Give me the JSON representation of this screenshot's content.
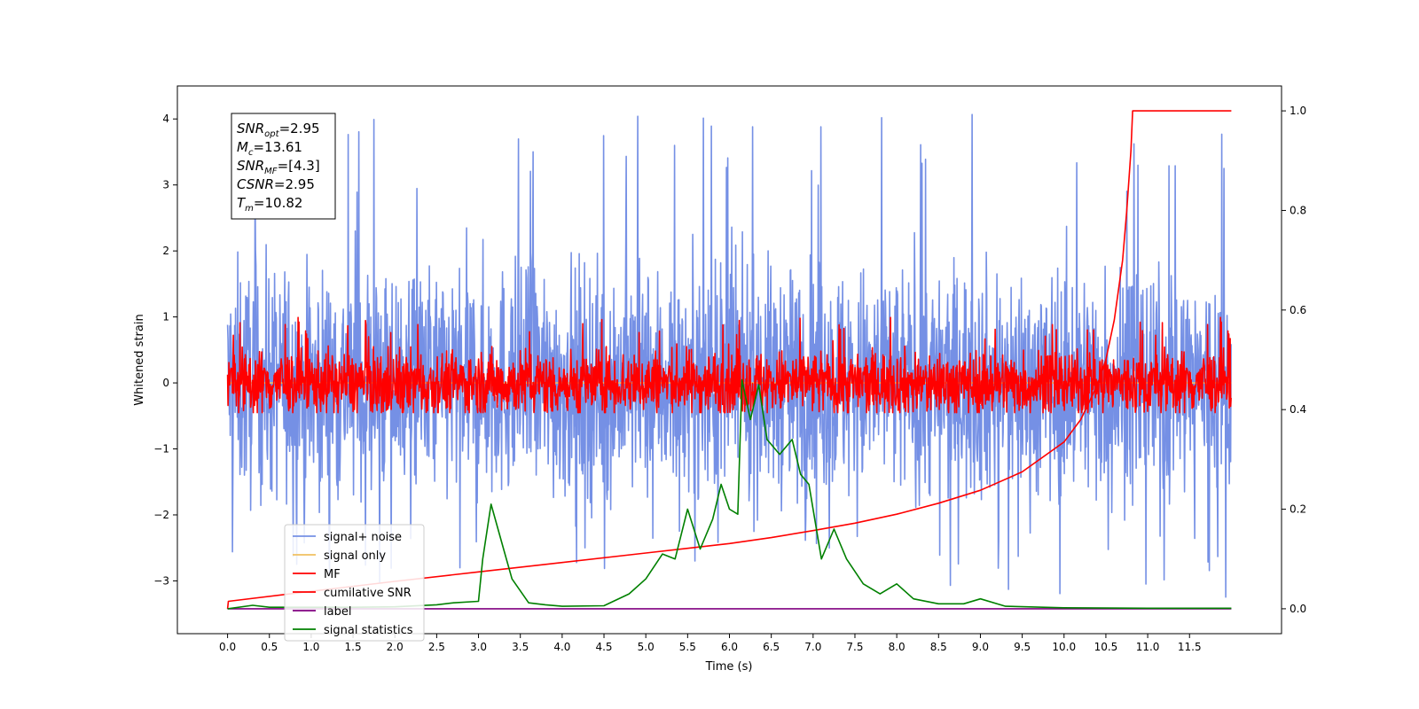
{
  "chart_data": {
    "type": "line",
    "xlabel": "Time (s)",
    "ylabel": "Whitened strain",
    "xlim": [
      -0.6,
      12.6
    ],
    "ylim": [
      -3.8,
      4.5
    ],
    "ylim_right": [
      -0.05,
      1.05
    ],
    "xticks": [
      "0.0",
      "0.5",
      "1.0",
      "1.5",
      "2.0",
      "2.5",
      "3.0",
      "3.5",
      "4.0",
      "4.5",
      "5.0",
      "5.5",
      "6.0",
      "6.5",
      "7.0",
      "7.5",
      "8.0",
      "8.5",
      "9.0",
      "9.5",
      "10.0",
      "10.5",
      "11.0",
      "11.5"
    ],
    "yticks_left": [
      -3,
      -2,
      -1,
      0,
      1,
      2,
      3,
      4
    ],
    "yticks_right": [
      0.0,
      0.2,
      0.4,
      0.6,
      0.8,
      1.0
    ],
    "legend_position": "lower-left",
    "annotation": [
      {
        "base": "SNR",
        "sub": "opt",
        "value": "=2.95"
      },
      {
        "base": "M",
        "sub": "c",
        "value": "=13.61"
      },
      {
        "base": "SNR",
        "sub": "MF",
        "value": "=[4.3]"
      },
      {
        "base": "CSNR",
        "sub": "",
        "value": "=2.95"
      },
      {
        "base": "T",
        "sub": "m",
        "value": "=10.82"
      }
    ],
    "series": [
      {
        "name": "signal+ noise",
        "color": "#7590e5",
        "axis": "left",
        "kind": "noise",
        "x_range": [
          0,
          12
        ],
        "center": 0,
        "band": [
          -1.6,
          1.6
        ],
        "extremes": [
          -3.3,
          4.1
        ]
      },
      {
        "name": "signal only",
        "color": "#f0c060",
        "axis": "left",
        "kind": "flat",
        "x_range": [
          0,
          12
        ],
        "y": 0
      },
      {
        "name": "MF",
        "color": "#ff0000",
        "axis": "left",
        "kind": "noise",
        "x_range": [
          0,
          12
        ],
        "center": 0,
        "band": [
          -0.4,
          0.5
        ],
        "extremes": [
          -0.45,
          1.0
        ]
      },
      {
        "name": "cumilative SNR",
        "color": "#ff0000",
        "axis": "right",
        "x": [
          0,
          0.01,
          1,
          2,
          3,
          4,
          5,
          6,
          6.5,
          7,
          7.5,
          8,
          8.5,
          9,
          9.5,
          10,
          10.2,
          10.4,
          10.5,
          10.6,
          10.7,
          10.75,
          10.8,
          10.82,
          12
        ],
        "y": [
          0,
          0.015,
          0.035,
          0.055,
          0.074,
          0.093,
          0.112,
          0.131,
          0.143,
          0.157,
          0.172,
          0.19,
          0.212,
          0.238,
          0.275,
          0.335,
          0.38,
          0.45,
          0.5,
          0.58,
          0.7,
          0.8,
          0.92,
          1.0,
          1.0
        ]
      },
      {
        "name": "label",
        "color": "#800080",
        "axis": "right",
        "kind": "flat",
        "x_range": [
          0,
          12
        ],
        "y": 0
      },
      {
        "name": "signal statistics",
        "color": "#008000",
        "axis": "right",
        "x": [
          0,
          0.3,
          0.5,
          1,
          1.5,
          2,
          2.5,
          2.7,
          3,
          3.05,
          3.15,
          3.3,
          3.4,
          3.6,
          3.8,
          4,
          4.5,
          4.8,
          5,
          5.2,
          5.35,
          5.5,
          5.65,
          5.8,
          5.9,
          6.0,
          6.1,
          6.15,
          6.25,
          6.35,
          6.45,
          6.6,
          6.75,
          6.85,
          6.95,
          7.1,
          7.25,
          7.4,
          7.6,
          7.8,
          8.0,
          8.2,
          8.5,
          8.8,
          9.0,
          9.3,
          10,
          11,
          12
        ],
        "y": [
          0,
          0.007,
          0.003,
          0.003,
          0.003,
          0.004,
          0.008,
          0.012,
          0.015,
          0.1,
          0.21,
          0.12,
          0.06,
          0.012,
          0.008,
          0.005,
          0.006,
          0.03,
          0.06,
          0.11,
          0.1,
          0.2,
          0.12,
          0.18,
          0.25,
          0.2,
          0.19,
          0.46,
          0.38,
          0.45,
          0.34,
          0.31,
          0.34,
          0.27,
          0.25,
          0.1,
          0.16,
          0.1,
          0.05,
          0.03,
          0.05,
          0.02,
          0.01,
          0.01,
          0.02,
          0.005,
          0.002,
          0.001,
          0.001
        ]
      }
    ]
  }
}
